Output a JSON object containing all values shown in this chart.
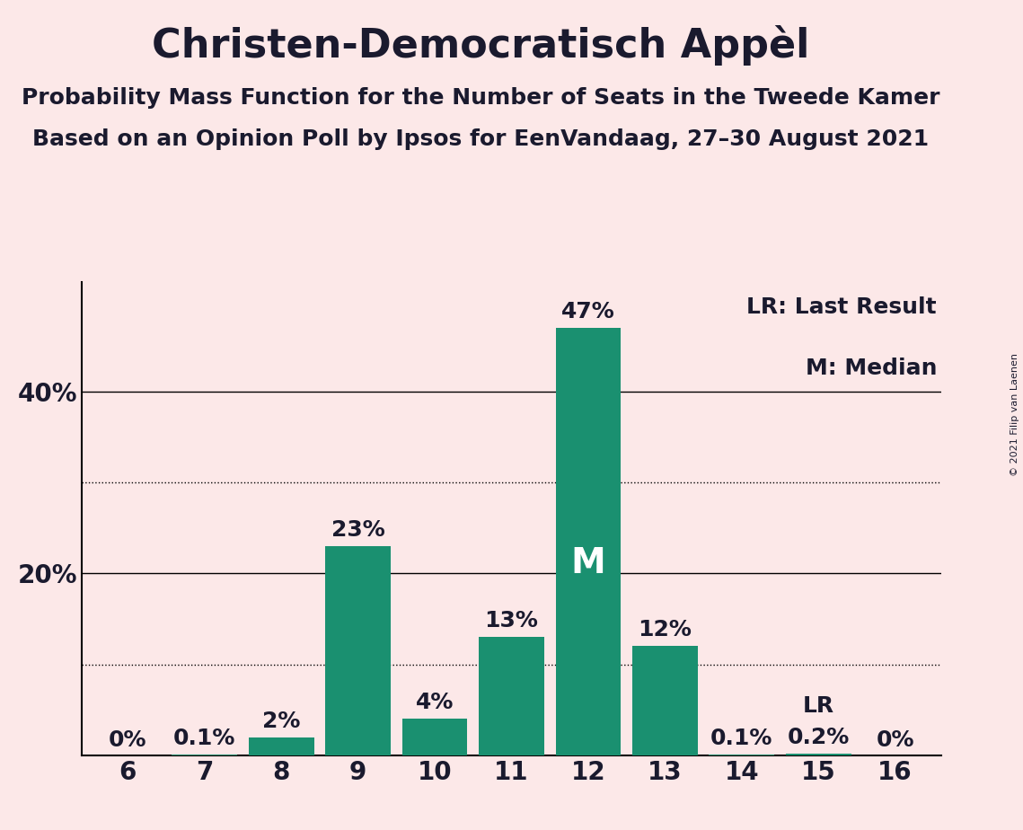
{
  "title": "Christen-Democratisch Appèl",
  "subtitle1": "Probability Mass Function for the Number of Seats in the Tweede Kamer",
  "subtitle2": "Based on an Opinion Poll by Ipsos for EenVandaag, 27–30 August 2021",
  "copyright_text": "© 2021 Filip van Laenen",
  "categories": [
    6,
    7,
    8,
    9,
    10,
    11,
    12,
    13,
    14,
    15,
    16
  ],
  "values": [
    0.0,
    0.1,
    2.0,
    23.0,
    4.0,
    13.0,
    47.0,
    12.0,
    0.1,
    0.2,
    0.0
  ],
  "bar_labels": [
    "0%",
    "0.1%",
    "2%",
    "23%",
    "4%",
    "13%",
    "47%",
    "12%",
    "0.1%",
    "0.2%",
    "0%"
  ],
  "bar_color": "#1a9070",
  "background_color": "#fce8e8",
  "median_seat": 12,
  "lr_seat": 15,
  "legend_lr": "LR: Last Result",
  "legend_m": "M: Median",
  "lr_label": "LR",
  "m_label": "M",
  "ylim": [
    0,
    52
  ],
  "solid_gridlines": [
    20,
    40
  ],
  "dotted_gridlines": [
    10,
    30
  ],
  "title_fontsize": 32,
  "subtitle_fontsize": 18,
  "tick_fontsize": 20,
  "legend_fontsize": 18,
  "bar_label_fontsize": 18,
  "median_label_fontsize": 28,
  "ytick_positions": [
    20,
    40
  ],
  "ytick_labels": [
    "20%",
    "40%"
  ]
}
